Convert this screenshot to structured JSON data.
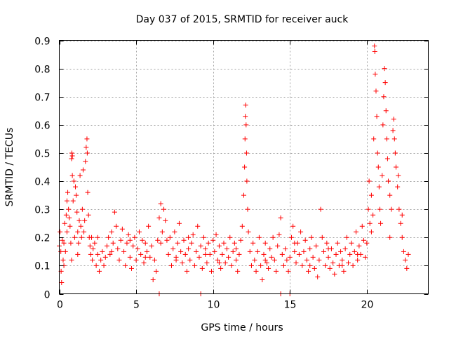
{
  "chart_data": {
    "type": "scatter",
    "title": "Day 037 of 2015, SRMTID for receiver auck",
    "xlabel": "GPS time / hours",
    "ylabel": "SRMTID / TECUs",
    "xlim": [
      0,
      24
    ],
    "ylim": [
      0,
      0.9
    ],
    "xticks": [
      0,
      5,
      10,
      15,
      20
    ],
    "yticks": [
      0,
      0.1,
      0.2,
      0.3,
      0.4,
      0.5,
      0.6,
      0.7,
      0.8,
      0.9
    ],
    "ytick_labels": [
      "0",
      "0.1",
      "0.2",
      "0.3",
      "0.4",
      "0.5",
      "0.6",
      "0.7",
      "0.8",
      "0.9"
    ],
    "grid": true,
    "marker": "+",
    "color": "#ff0000",
    "series": [
      {
        "name": "SRMTID",
        "points": [
          [
            0.0,
            0.17
          ],
          [
            0.05,
            0.22
          ],
          [
            0.1,
            0.15
          ],
          [
            0.12,
            0.08
          ],
          [
            0.15,
            0.04
          ],
          [
            0.2,
            0.19
          ],
          [
            0.25,
            0.12
          ],
          [
            0.3,
            0.18
          ],
          [
            0.35,
            0.25
          ],
          [
            0.4,
            0.15
          ],
          [
            0.45,
            0.28
          ],
          [
            0.5,
            0.22
          ],
          [
            0.5,
            0.33
          ],
          [
            0.55,
            0.36
          ],
          [
            0.6,
            0.3
          ],
          [
            0.65,
            0.27
          ],
          [
            0.7,
            0.24
          ],
          [
            0.75,
            0.18
          ],
          [
            0.8,
            0.12
          ],
          [
            0.8,
            0.48
          ],
          [
            0.82,
            0.5
          ],
          [
            0.85,
            0.49
          ],
          [
            0.85,
            0.42
          ],
          [
            0.9,
            0.33
          ],
          [
            0.95,
            0.4
          ],
          [
            1.0,
            0.2
          ],
          [
            1.05,
            0.38
          ],
          [
            1.1,
            0.35
          ],
          [
            1.15,
            0.29
          ],
          [
            1.2,
            0.22
          ],
          [
            1.25,
            0.18
          ],
          [
            1.3,
            0.26
          ],
          [
            1.35,
            0.42
          ],
          [
            1.4,
            0.24
          ],
          [
            1.45,
            0.2
          ],
          [
            1.5,
            0.3
          ],
          [
            1.55,
            0.44
          ],
          [
            1.6,
            0.22
          ],
          [
            1.65,
            0.26
          ],
          [
            1.7,
            0.47
          ],
          [
            1.75,
            0.52
          ],
          [
            1.8,
            0.55
          ],
          [
            1.82,
            0.5
          ],
          [
            1.85,
            0.36
          ],
          [
            1.9,
            0.28
          ],
          [
            1.95,
            0.2
          ],
          [
            2.0,
            0.17
          ],
          [
            2.05,
            0.14
          ],
          [
            2.1,
            0.2
          ],
          [
            2.15,
            0.12
          ],
          [
            2.2,
            0.16
          ],
          [
            2.3,
            0.18
          ],
          [
            2.4,
            0.1
          ],
          [
            2.5,
            0.14
          ],
          [
            2.6,
            0.08
          ],
          [
            2.7,
            0.12
          ],
          [
            2.8,
            0.15
          ],
          [
            2.9,
            0.1
          ],
          [
            3.0,
            0.13
          ],
          [
            3.1,
            0.17
          ],
          [
            3.2,
            0.2
          ],
          [
            3.3,
            0.14
          ],
          [
            3.4,
            0.22
          ],
          [
            3.5,
            0.18
          ],
          [
            3.6,
            0.29
          ],
          [
            3.7,
            0.24
          ],
          [
            3.8,
            0.16
          ],
          [
            3.9,
            0.12
          ],
          [
            4.0,
            0.19
          ],
          [
            4.1,
            0.23
          ],
          [
            4.2,
            0.15
          ],
          [
            4.3,
            0.1
          ],
          [
            4.4,
            0.18
          ],
          [
            4.5,
            0.21
          ],
          [
            4.6,
            0.13
          ],
          [
            4.7,
            0.09
          ],
          [
            4.8,
            0.17
          ],
          [
            4.9,
            0.2
          ],
          [
            5.0,
            0.12
          ],
          [
            5.1,
            0.16
          ],
          [
            5.2,
            0.22
          ],
          [
            5.3,
            0.14
          ],
          [
            5.4,
            0.19
          ],
          [
            5.5,
            0.11
          ],
          [
            5.6,
            0.18
          ],
          [
            5.7,
            0.15
          ],
          [
            5.8,
            0.24
          ],
          [
            5.9,
            0.13
          ],
          [
            6.0,
            0.17
          ],
          [
            6.1,
            0.05
          ],
          [
            6.2,
            0.12
          ],
          [
            6.3,
            0.08
          ],
          [
            6.4,
            0.19
          ],
          [
            6.5,
            0.27
          ],
          [
            6.6,
            0.32
          ],
          [
            6.7,
            0.22
          ],
          [
            6.8,
            0.3
          ],
          [
            6.9,
            0.26
          ],
          [
            7.0,
            0.19
          ],
          [
            7.1,
            0.14
          ],
          [
            7.2,
            0.2
          ],
          [
            7.3,
            0.1
          ],
          [
            7.4,
            0.16
          ],
          [
            7.5,
            0.22
          ],
          [
            7.6,
            0.13
          ],
          [
            7.7,
            0.18
          ],
          [
            7.8,
            0.25
          ],
          [
            7.9,
            0.15
          ],
          [
            8.0,
            0.11
          ],
          [
            8.1,
            0.19
          ],
          [
            8.2,
            0.14
          ],
          [
            8.3,
            0.08
          ],
          [
            8.4,
            0.16
          ],
          [
            8.5,
            0.12
          ],
          [
            8.6,
            0.18
          ],
          [
            8.7,
            0.21
          ],
          [
            8.8,
            0.1
          ],
          [
            8.9,
            0.15
          ],
          [
            9.0,
            0.24
          ],
          [
            9.1,
            0.13
          ],
          [
            9.2,
            0.17
          ],
          [
            9.3,
            0.09
          ],
          [
            9.4,
            0.2
          ],
          [
            9.5,
            0.16
          ],
          [
            9.6,
            0.11
          ],
          [
            9.7,
            0.18
          ],
          [
            9.8,
            0.14
          ],
          [
            9.9,
            0.08
          ],
          [
            10.0,
            0.19
          ],
          [
            10.1,
            0.15
          ],
          [
            10.2,
            0.21
          ],
          [
            10.3,
            0.12
          ],
          [
            10.4,
            0.17
          ],
          [
            10.5,
            0.09
          ],
          [
            10.6,
            0.14
          ],
          [
            10.7,
            0.18
          ],
          [
            10.8,
            0.11
          ],
          [
            10.9,
            0.16
          ],
          [
            11.0,
            0.13
          ],
          [
            11.1,
            0.2
          ],
          [
            11.2,
            0.1
          ],
          [
            11.3,
            0.15
          ],
          [
            11.4,
            0.18
          ],
          [
            11.5,
            0.12
          ],
          [
            11.6,
            0.08
          ],
          [
            11.7,
            0.14
          ],
          [
            11.8,
            0.19
          ],
          [
            11.9,
            0.24
          ],
          [
            12.0,
            0.35
          ],
          [
            12.05,
            0.45
          ],
          [
            12.08,
            0.55
          ],
          [
            12.1,
            0.63
          ],
          [
            12.12,
            0.67
          ],
          [
            12.15,
            0.6
          ],
          [
            12.18,
            0.5
          ],
          [
            12.2,
            0.4
          ],
          [
            12.25,
            0.3
          ],
          [
            12.3,
            0.22
          ],
          [
            12.4,
            0.15
          ],
          [
            12.5,
            0.1
          ],
          [
            12.6,
            0.18
          ],
          [
            12.7,
            0.12
          ],
          [
            12.8,
            0.08
          ],
          [
            12.9,
            0.15
          ],
          [
            13.0,
            0.2
          ],
          [
            13.1,
            0.1
          ],
          [
            13.2,
            0.05
          ],
          [
            13.3,
            0.14
          ],
          [
            13.4,
            0.18
          ],
          [
            13.5,
            0.11
          ],
          [
            13.6,
            0.09
          ],
          [
            13.7,
            0.16
          ],
          [
            13.8,
            0.13
          ],
          [
            13.9,
            0.2
          ],
          [
            14.0,
            0.12
          ],
          [
            14.1,
            0.08
          ],
          [
            14.2,
            0.17
          ],
          [
            14.3,
            0.21
          ],
          [
            14.4,
            0.27
          ],
          [
            14.5,
            0.14
          ],
          [
            14.6,
            0.1
          ],
          [
            14.7,
            0.16
          ],
          [
            14.8,
            0.12
          ],
          [
            14.9,
            0.08
          ],
          [
            15.0,
            0.13
          ],
          [
            15.1,
            0.2
          ],
          [
            15.2,
            0.24
          ],
          [
            15.3,
            0.15
          ],
          [
            15.4,
            0.11
          ],
          [
            15.5,
            0.18
          ],
          [
            15.6,
            0.14
          ],
          [
            15.7,
            0.22
          ],
          [
            15.8,
            0.1
          ],
          [
            15.9,
            0.15
          ],
          [
            16.0,
            0.19
          ],
          [
            16.1,
            0.12
          ],
          [
            16.2,
            0.08
          ],
          [
            16.3,
            0.16
          ],
          [
            16.4,
            0.2
          ],
          [
            16.5,
            0.13
          ],
          [
            16.6,
            0.09
          ],
          [
            16.7,
            0.17
          ],
          [
            16.8,
            0.06
          ],
          [
            16.9,
            0.12
          ],
          [
            17.0,
            0.3
          ],
          [
            17.1,
            0.2
          ],
          [
            17.2,
            0.15
          ],
          [
            17.3,
            0.1
          ],
          [
            17.4,
            0.18
          ],
          [
            17.5,
            0.13
          ],
          [
            17.6,
            0.09
          ],
          [
            17.7,
            0.16
          ],
          [
            17.8,
            0.11
          ],
          [
            17.9,
            0.07
          ],
          [
            18.0,
            0.14
          ],
          [
            18.1,
            0.18
          ],
          [
            18.2,
            0.1
          ],
          [
            18.3,
            0.15
          ],
          [
            18.4,
            0.12
          ],
          [
            18.5,
            0.08
          ],
          [
            18.6,
            0.16
          ],
          [
            18.7,
            0.2
          ],
          [
            18.8,
            0.11
          ],
          [
            18.9,
            0.14
          ],
          [
            19.0,
            0.18
          ],
          [
            19.1,
            0.1
          ],
          [
            19.2,
            0.15
          ],
          [
            19.3,
            0.22
          ],
          [
            19.4,
            0.12
          ],
          [
            19.5,
            0.17
          ],
          [
            19.6,
            0.14
          ],
          [
            19.7,
            0.24
          ],
          [
            19.8,
            0.19
          ],
          [
            19.9,
            0.13
          ],
          [
            20.0,
            0.18
          ],
          [
            20.1,
            0.3
          ],
          [
            20.15,
            0.4
          ],
          [
            20.2,
            0.25
          ],
          [
            20.3,
            0.35
          ],
          [
            20.4,
            0.28
          ],
          [
            20.45,
            0.55
          ],
          [
            20.5,
            0.88
          ],
          [
            20.52,
            0.86
          ],
          [
            20.55,
            0.78
          ],
          [
            20.6,
            0.72
          ],
          [
            20.65,
            0.63
          ],
          [
            20.7,
            0.5
          ],
          [
            20.75,
            0.45
          ],
          [
            20.8,
            0.38
          ],
          [
            20.85,
            0.3
          ],
          [
            20.9,
            0.25
          ],
          [
            21.0,
            0.42
          ],
          [
            21.05,
            0.6
          ],
          [
            21.1,
            0.7
          ],
          [
            21.15,
            0.8
          ],
          [
            21.2,
            0.75
          ],
          [
            21.25,
            0.65
          ],
          [
            21.3,
            0.55
          ],
          [
            21.35,
            0.48
          ],
          [
            21.4,
            0.4
          ],
          [
            21.5,
            0.35
          ],
          [
            21.6,
            0.3
          ],
          [
            21.7,
            0.58
          ],
          [
            21.75,
            0.62
          ],
          [
            21.8,
            0.55
          ],
          [
            21.85,
            0.5
          ],
          [
            21.9,
            0.45
          ],
          [
            22.0,
            0.38
          ],
          [
            22.05,
            0.42
          ],
          [
            22.1,
            0.3
          ],
          [
            22.2,
            0.25
          ],
          [
            22.3,
            0.2
          ],
          [
            22.4,
            0.15
          ],
          [
            22.5,
            0.12
          ],
          [
            22.6,
            0.09
          ],
          [
            22.7,
            0.14
          ],
          [
            0.3,
            0.1
          ],
          [
            1.2,
            0.14
          ],
          [
            2.5,
            0.2
          ],
          [
            3.4,
            0.15
          ],
          [
            4.6,
            0.19
          ],
          [
            5.6,
            0.13
          ],
          [
            6.6,
            0.18
          ],
          [
            7.6,
            0.12
          ],
          [
            8.4,
            0.2
          ],
          [
            9.5,
            0.14
          ],
          [
            10.4,
            0.11
          ],
          [
            11.5,
            0.16
          ],
          [
            13.4,
            0.12
          ],
          [
            15.3,
            0.18
          ],
          [
            16.3,
            0.1
          ],
          [
            17.5,
            0.16
          ],
          [
            18.4,
            0.1
          ],
          [
            19.4,
            0.14
          ],
          [
            20.3,
            0.22
          ],
          [
            21.5,
            0.2
          ],
          [
            22.3,
            0.28
          ],
          [
            6.5,
            0.0
          ],
          [
            9.2,
            0.0
          ],
          [
            14.4,
            0.0
          ],
          [
            15.0,
            0.0
          ]
        ]
      }
    ]
  }
}
